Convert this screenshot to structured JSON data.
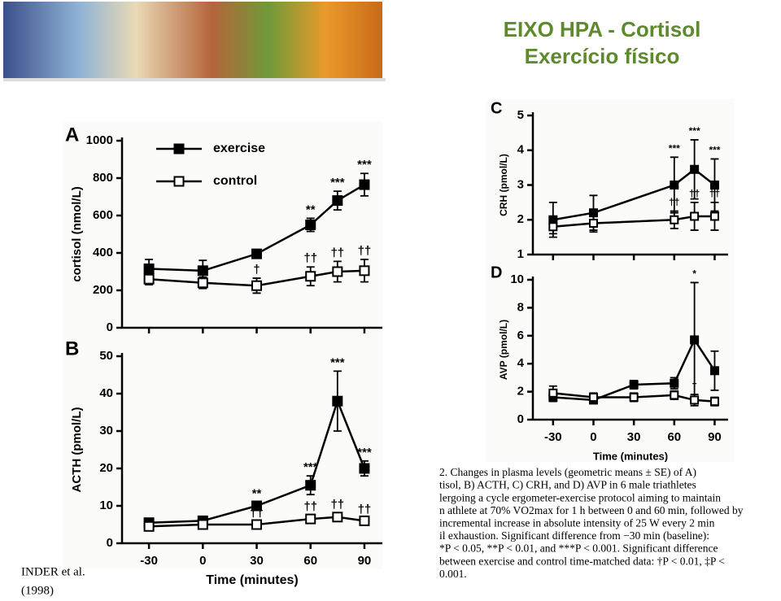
{
  "title": "EIXO HPA - Cortisol",
  "subtitle": "Exercício físico",
  "citation": [
    "INDER et al.",
    "(1998)"
  ],
  "caption": [
    "2.  Changes in plasma levels (geometric means ± SE) of A)",
    "tisol, B) ACTH, C) CRH, and D) AVP in 6 male triathletes",
    "lergoing a cycle ergometer-exercise protocol aiming to maintain",
    "n athlete at 70% VO2max for 1 h between 0 and 60 min, followed by",
    "incremental increase in absolute intensity of 25 W every 2 min",
    "il exhaustion. Significant difference from −30 min (baseline):",
    "*P < 0.05, **P < 0.01, and ***P < 0.001. Significant difference",
    "between exercise and control time-matched data: †P < 0.01, ‡P <",
    "0.001."
  ],
  "chart_data": [
    {
      "type": "line",
      "label": "A",
      "ylabel": "cortisol (nmol/L)",
      "x": [
        -30,
        0,
        30,
        60,
        75,
        90
      ],
      "xlim": [
        -45,
        100
      ],
      "xticks": [
        -30,
        0,
        30,
        60,
        90
      ],
      "xtick_labels": false,
      "ylim": [
        0,
        1000
      ],
      "yticks": [
        0,
        200,
        400,
        600,
        800,
        1000
      ],
      "series": [
        {
          "name": "exercise",
          "color": "#000000",
          "marker": "filled",
          "values": [
            315,
            305,
            395,
            550,
            680,
            765
          ],
          "errors": [
            50,
            55,
            15,
            35,
            50,
            60
          ],
          "sig": [
            null,
            null,
            null,
            "**",
            "***",
            "***"
          ]
        },
        {
          "name": "control",
          "color": "#000000",
          "marker": "open",
          "values": [
            260,
            240,
            225,
            275,
            300,
            305
          ],
          "errors": [
            30,
            30,
            40,
            50,
            55,
            60
          ],
          "sig": [
            null,
            null,
            "†",
            "††",
            "††",
            "††"
          ]
        }
      ]
    },
    {
      "type": "line",
      "label": "B",
      "ylabel": "ACTH (pmol/L)",
      "xlabel": "Time (minutes)",
      "x": [
        -30,
        0,
        30,
        60,
        75,
        90
      ],
      "xlim": [
        -45,
        100
      ],
      "xticks": [
        -30,
        0,
        30,
        60,
        90
      ],
      "xtick_labels": true,
      "ylim": [
        0,
        50
      ],
      "yticks": [
        0,
        10,
        20,
        30,
        40,
        50
      ],
      "series": [
        {
          "color": "#000000",
          "marker": "filled",
          "values": [
            5.5,
            6,
            10,
            15.5,
            38,
            20
          ],
          "errors": [
            1,
            1,
            1,
            2.5,
            8,
            2
          ],
          "sig": [
            null,
            null,
            "**",
            "***",
            "***",
            "***"
          ]
        },
        {
          "color": "#000000",
          "marker": "open",
          "values": [
            4.5,
            5,
            5,
            6.5,
            7,
            6
          ],
          "errors": [
            0.7,
            0.7,
            0.7,
            1,
            1,
            0.7
          ],
          "sig": [
            null,
            null,
            "††",
            "††",
            "††",
            "††"
          ]
        }
      ]
    },
    {
      "type": "line",
      "label": "C",
      "ylabel": "CRH (pmol/L)",
      "x": [
        -30,
        0,
        60,
        75,
        90
      ],
      "xlim": [
        -45,
        100
      ],
      "xticks": [
        -30,
        0,
        30,
        60,
        90
      ],
      "xtick_labels": false,
      "ylim": [
        1,
        5
      ],
      "yticks": [
        1,
        2,
        3,
        4,
        5
      ],
      "series": [
        {
          "color": "#000000",
          "marker": "filled",
          "values": [
            2.0,
            2.2,
            3.0,
            3.45,
            3.0
          ],
          "errors": [
            0.5,
            0.5,
            0.8,
            0.85,
            0.75
          ],
          "sig": [
            null,
            null,
            "***",
            "***",
            "***"
          ]
        },
        {
          "color": "#000000",
          "marker": "open",
          "values": [
            1.8,
            1.9,
            2.0,
            2.1,
            2.1
          ],
          "errors": [
            0.2,
            0.25,
            0.25,
            0.4,
            0.4
          ],
          "sig": [
            null,
            null,
            "††",
            "††",
            "††"
          ]
        }
      ]
    },
    {
      "type": "line",
      "label": "D",
      "ylabel": "AVP (pmol/L)",
      "xlabel": "Time (minutes)",
      "x": [
        -30,
        0,
        30,
        60,
        75,
        90
      ],
      "xlim": [
        -45,
        100
      ],
      "xticks": [
        -30,
        0,
        30,
        60,
        90
      ],
      "xtick_labels": true,
      "ylim": [
        0,
        10
      ],
      "yticks": [
        0,
        2,
        4,
        6,
        8,
        10
      ],
      "series": [
        {
          "color": "#000000",
          "marker": "filled",
          "values": [
            1.6,
            1.4,
            2.5,
            2.6,
            5.7,
            3.5
          ],
          "errors": [
            0.3,
            0.2,
            0.3,
            0.4,
            4.1,
            1.4
          ],
          "sig": [
            null,
            null,
            null,
            null,
            "*",
            null
          ]
        },
        {
          "color": "#000000",
          "marker": "open",
          "values": [
            1.9,
            1.6,
            1.6,
            1.75,
            1.4,
            1.3
          ],
          "errors": [
            0.5,
            0.3,
            0.3,
            0.3,
            0.4,
            0.3
          ],
          "sig": [
            null,
            null,
            null,
            null,
            "†",
            null
          ]
        }
      ]
    }
  ]
}
